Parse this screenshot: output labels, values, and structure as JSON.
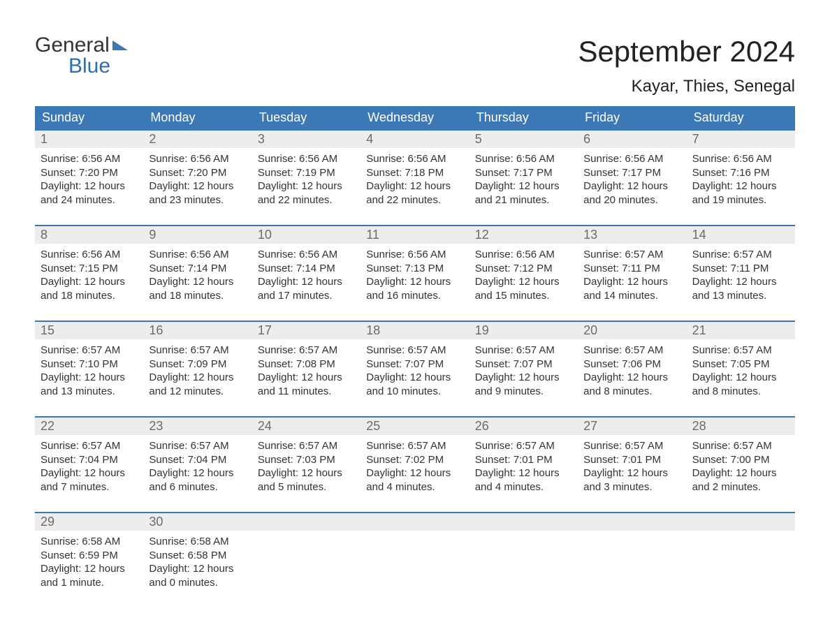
{
  "logo": {
    "word1": "General",
    "word2": "Blue"
  },
  "title": "September 2024",
  "location": "Kayar, Thies, Senegal",
  "colors": {
    "header_bg": "#3b78b5",
    "header_text": "#ffffff",
    "daynum_bg": "#ededed",
    "daynum_text": "#6b6b6b",
    "body_text": "#333333",
    "week_border": "#3b78b5",
    "page_bg": "#ffffff"
  },
  "weekdays": [
    "Sunday",
    "Monday",
    "Tuesday",
    "Wednesday",
    "Thursday",
    "Friday",
    "Saturday"
  ],
  "weeks": [
    [
      {
        "n": "1",
        "sunrise": "6:56 AM",
        "sunset": "7:20 PM",
        "daylight": "12 hours and 24 minutes."
      },
      {
        "n": "2",
        "sunrise": "6:56 AM",
        "sunset": "7:20 PM",
        "daylight": "12 hours and 23 minutes."
      },
      {
        "n": "3",
        "sunrise": "6:56 AM",
        "sunset": "7:19 PM",
        "daylight": "12 hours and 22 minutes."
      },
      {
        "n": "4",
        "sunrise": "6:56 AM",
        "sunset": "7:18 PM",
        "daylight": "12 hours and 22 minutes."
      },
      {
        "n": "5",
        "sunrise": "6:56 AM",
        "sunset": "7:17 PM",
        "daylight": "12 hours and 21 minutes."
      },
      {
        "n": "6",
        "sunrise": "6:56 AM",
        "sunset": "7:17 PM",
        "daylight": "12 hours and 20 minutes."
      },
      {
        "n": "7",
        "sunrise": "6:56 AM",
        "sunset": "7:16 PM",
        "daylight": "12 hours and 19 minutes."
      }
    ],
    [
      {
        "n": "8",
        "sunrise": "6:56 AM",
        "sunset": "7:15 PM",
        "daylight": "12 hours and 18 minutes."
      },
      {
        "n": "9",
        "sunrise": "6:56 AM",
        "sunset": "7:14 PM",
        "daylight": "12 hours and 18 minutes."
      },
      {
        "n": "10",
        "sunrise": "6:56 AM",
        "sunset": "7:14 PM",
        "daylight": "12 hours and 17 minutes."
      },
      {
        "n": "11",
        "sunrise": "6:56 AM",
        "sunset": "7:13 PM",
        "daylight": "12 hours and 16 minutes."
      },
      {
        "n": "12",
        "sunrise": "6:56 AM",
        "sunset": "7:12 PM",
        "daylight": "12 hours and 15 minutes."
      },
      {
        "n": "13",
        "sunrise": "6:57 AM",
        "sunset": "7:11 PM",
        "daylight": "12 hours and 14 minutes."
      },
      {
        "n": "14",
        "sunrise": "6:57 AM",
        "sunset": "7:11 PM",
        "daylight": "12 hours and 13 minutes."
      }
    ],
    [
      {
        "n": "15",
        "sunrise": "6:57 AM",
        "sunset": "7:10 PM",
        "daylight": "12 hours and 13 minutes."
      },
      {
        "n": "16",
        "sunrise": "6:57 AM",
        "sunset": "7:09 PM",
        "daylight": "12 hours and 12 minutes."
      },
      {
        "n": "17",
        "sunrise": "6:57 AM",
        "sunset": "7:08 PM",
        "daylight": "12 hours and 11 minutes."
      },
      {
        "n": "18",
        "sunrise": "6:57 AM",
        "sunset": "7:07 PM",
        "daylight": "12 hours and 10 minutes."
      },
      {
        "n": "19",
        "sunrise": "6:57 AM",
        "sunset": "7:07 PM",
        "daylight": "12 hours and 9 minutes."
      },
      {
        "n": "20",
        "sunrise": "6:57 AM",
        "sunset": "7:06 PM",
        "daylight": "12 hours and 8 minutes."
      },
      {
        "n": "21",
        "sunrise": "6:57 AM",
        "sunset": "7:05 PM",
        "daylight": "12 hours and 8 minutes."
      }
    ],
    [
      {
        "n": "22",
        "sunrise": "6:57 AM",
        "sunset": "7:04 PM",
        "daylight": "12 hours and 7 minutes."
      },
      {
        "n": "23",
        "sunrise": "6:57 AM",
        "sunset": "7:04 PM",
        "daylight": "12 hours and 6 minutes."
      },
      {
        "n": "24",
        "sunrise": "6:57 AM",
        "sunset": "7:03 PM",
        "daylight": "12 hours and 5 minutes."
      },
      {
        "n": "25",
        "sunrise": "6:57 AM",
        "sunset": "7:02 PM",
        "daylight": "12 hours and 4 minutes."
      },
      {
        "n": "26",
        "sunrise": "6:57 AM",
        "sunset": "7:01 PM",
        "daylight": "12 hours and 4 minutes."
      },
      {
        "n": "27",
        "sunrise": "6:57 AM",
        "sunset": "7:01 PM",
        "daylight": "12 hours and 3 minutes."
      },
      {
        "n": "28",
        "sunrise": "6:57 AM",
        "sunset": "7:00 PM",
        "daylight": "12 hours and 2 minutes."
      }
    ],
    [
      {
        "n": "29",
        "sunrise": "6:58 AM",
        "sunset": "6:59 PM",
        "daylight": "12 hours and 1 minute."
      },
      {
        "n": "30",
        "sunrise": "6:58 AM",
        "sunset": "6:58 PM",
        "daylight": "12 hours and 0 minutes."
      },
      null,
      null,
      null,
      null,
      null
    ]
  ],
  "labels": {
    "sunrise_prefix": "Sunrise: ",
    "sunset_prefix": "Sunset: ",
    "daylight_prefix": "Daylight: "
  }
}
